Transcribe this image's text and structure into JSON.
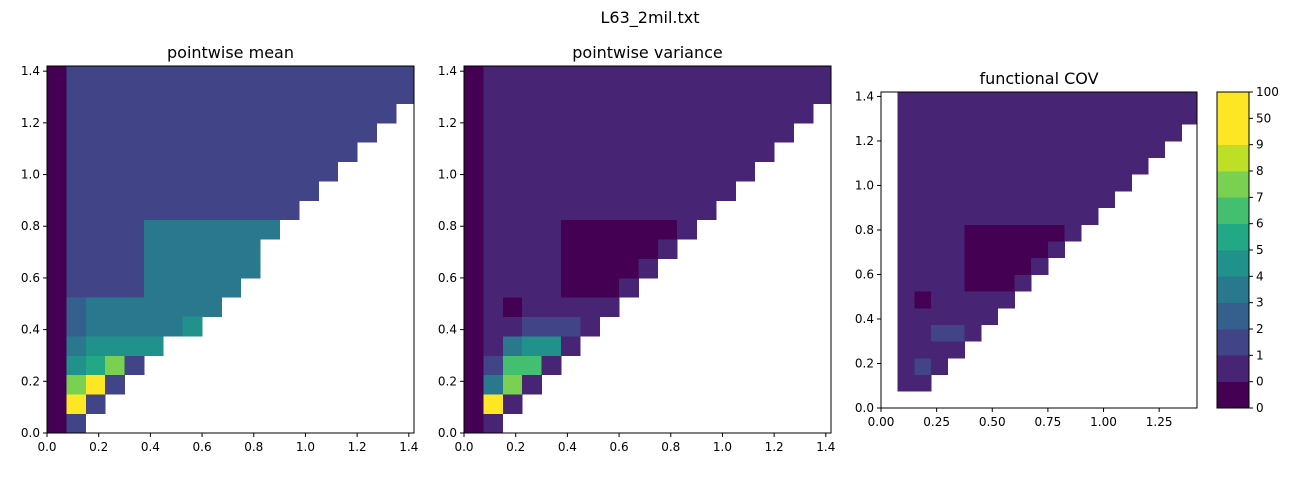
{
  "figure_title": "L63_2mil.txt",
  "chart_data": [
    {
      "type": "heatmap",
      "title": "pointwise mean",
      "xlim": [
        0,
        1.42
      ],
      "ylim": [
        0,
        1.42
      ],
      "x_ticks": [
        0.0,
        0.2,
        0.4,
        0.6,
        0.8,
        1.0,
        1.2,
        1.4
      ],
      "y_ticks": [
        0.0,
        0.2,
        0.4,
        0.6,
        0.8,
        1.0,
        1.2,
        1.4
      ],
      "tick_format": 1,
      "min_row": 0,
      "start_col": 0,
      "cell_size": 0.075,
      "triangle_color_index": 2,
      "cell_overrides": [
        {
          "row": 0,
          "cols": [
            0
          ],
          "color_index": 0
        },
        {
          "row": 1,
          "cols": [
            0
          ],
          "color_index": 0
        },
        {
          "row": 1,
          "cols": [
            1
          ],
          "color_index": 10
        },
        {
          "row": 2,
          "cols": [
            0
          ],
          "color_index": 0
        },
        {
          "row": 2,
          "cols": [
            1
          ],
          "color_index": 8
        },
        {
          "row": 2,
          "cols": [
            2
          ],
          "color_index": 10
        },
        {
          "row": 3,
          "cols": [
            1
          ],
          "color_index": 5
        },
        {
          "row": 3,
          "cols": [
            2
          ],
          "color_index": 6
        },
        {
          "row": 3,
          "cols": [
            3
          ],
          "color_index": 8
        },
        {
          "row": 4,
          "cols": [
            1
          ],
          "color_index": 4
        },
        {
          "row": 4,
          "cols": [
            2,
            3,
            4,
            5
          ],
          "color_index": 5
        },
        {
          "row": 5,
          "cols": [
            1
          ],
          "color_index": 3
        },
        {
          "row": 5,
          "cols": [
            2,
            3,
            4,
            5,
            6
          ],
          "color_index": 4
        },
        {
          "row": 5,
          "cols": [
            7
          ],
          "color_index": 5
        },
        {
          "row": 6,
          "cols": [
            1
          ],
          "color_index": 3
        },
        {
          "row": 6,
          "cols": [
            2,
            3,
            4,
            5,
            6,
            7,
            8
          ],
          "color_index": 4
        },
        {
          "row": 7,
          "cols": [
            5,
            6,
            7,
            8,
            9
          ],
          "color_index": 4
        },
        {
          "row": 8,
          "cols": [
            5,
            6,
            7,
            8,
            9,
            10
          ],
          "color_index": 4
        },
        {
          "row": 9,
          "cols": [
            5,
            6,
            7,
            8,
            9,
            10
          ],
          "color_index": 4
        },
        {
          "row": 10,
          "cols": [
            5,
            6,
            7,
            8,
            9,
            10,
            11
          ],
          "color_index": 4
        }
      ],
      "column_override": {
        "col": 0,
        "color_index": 0
      },
      "colorbar": false
    },
    {
      "type": "heatmap",
      "title": "pointwise variance",
      "xlim": [
        0,
        1.42
      ],
      "ylim": [
        0,
        1.42
      ],
      "x_ticks": [
        0.0,
        0.2,
        0.4,
        0.6,
        0.8,
        1.0,
        1.2,
        1.4
      ],
      "y_ticks": [
        0.0,
        0.2,
        0.4,
        0.6,
        0.8,
        1.0,
        1.2,
        1.4
      ],
      "tick_format": 1,
      "min_row": 0,
      "start_col": 0,
      "cell_size": 0.075,
      "triangle_color_index": 1,
      "cell_overrides": [
        {
          "row": 0,
          "cols": [
            0
          ],
          "color_index": 0
        },
        {
          "row": 1,
          "cols": [
            0
          ],
          "color_index": 0
        },
        {
          "row": 1,
          "cols": [
            1
          ],
          "color_index": 10
        },
        {
          "row": 2,
          "cols": [
            0
          ],
          "color_index": 0
        },
        {
          "row": 2,
          "cols": [
            1
          ],
          "color_index": 4
        },
        {
          "row": 2,
          "cols": [
            2
          ],
          "color_index": 8
        },
        {
          "row": 3,
          "cols": [
            1
          ],
          "color_index": 2
        },
        {
          "row": 3,
          "cols": [
            2,
            3
          ],
          "color_index": 7
        },
        {
          "row": 4,
          "cols": [
            2
          ],
          "color_index": 4
        },
        {
          "row": 4,
          "cols": [
            3,
            4
          ],
          "color_index": 5
        },
        {
          "row": 5,
          "cols": [
            3,
            4,
            5
          ],
          "color_index": 2
        },
        {
          "row": 6,
          "cols": [
            2
          ],
          "color_index": 0
        },
        {
          "row": 7,
          "cols": [
            5,
            6,
            7
          ],
          "color_index": 0
        },
        {
          "row": 8,
          "cols": [
            5,
            6,
            7,
            8
          ],
          "color_index": 0
        },
        {
          "row": 9,
          "cols": [
            5,
            6,
            7,
            8,
            9
          ],
          "color_index": 0
        },
        {
          "row": 10,
          "cols": [
            5,
            6,
            7,
            8,
            9,
            10
          ],
          "color_index": 0
        }
      ],
      "column_override": {
        "col": 0,
        "color_index": 0
      },
      "colorbar": false
    },
    {
      "type": "heatmap",
      "title": "functional COV",
      "xlim": [
        0,
        1.42
      ],
      "ylim": [
        0,
        1.42
      ],
      "x_ticks": [
        0.0,
        0.25,
        0.5,
        0.75,
        1.0,
        1.25
      ],
      "y_ticks": [
        0.0,
        0.2,
        0.4,
        0.6,
        0.8,
        1.0,
        1.2,
        1.4
      ],
      "x_tick_format": 2,
      "tick_format": 1,
      "min_row": 1,
      "start_col": 1,
      "cell_size": 0.075,
      "triangle_color_index": 1,
      "cell_overrides": [
        {
          "row": 2,
          "cols": [
            2
          ],
          "color_index": 2
        },
        {
          "row": 2,
          "cols": [
            3
          ],
          "color_index": 1
        },
        {
          "row": 4,
          "cols": [
            3,
            4
          ],
          "color_index": 2
        },
        {
          "row": 6,
          "cols": [
            2
          ],
          "color_index": 0
        },
        {
          "row": 7,
          "cols": [
            5,
            6,
            7
          ],
          "color_index": 0
        },
        {
          "row": 8,
          "cols": [
            5,
            6,
            7,
            8
          ],
          "color_index": 0
        },
        {
          "row": 9,
          "cols": [
            5,
            6,
            7,
            8,
            9
          ],
          "color_index": 0
        },
        {
          "row": 10,
          "cols": [
            5,
            6,
            7,
            8,
            9,
            10
          ],
          "color_index": 0
        }
      ],
      "colorbar": true,
      "colorbar_labels": [
        "0",
        "0",
        "1",
        "2",
        "3",
        "4",
        "5",
        "6",
        "7",
        "8",
        "9",
        "50",
        "100"
      ],
      "colorbar_colors": [
        "#440154",
        "#482475",
        "#414487",
        "#355f8d",
        "#2a788e",
        "#21918c",
        "#22a884",
        "#44bf70",
        "#7ad151",
        "#bddf26",
        "#fde725"
      ]
    }
  ]
}
